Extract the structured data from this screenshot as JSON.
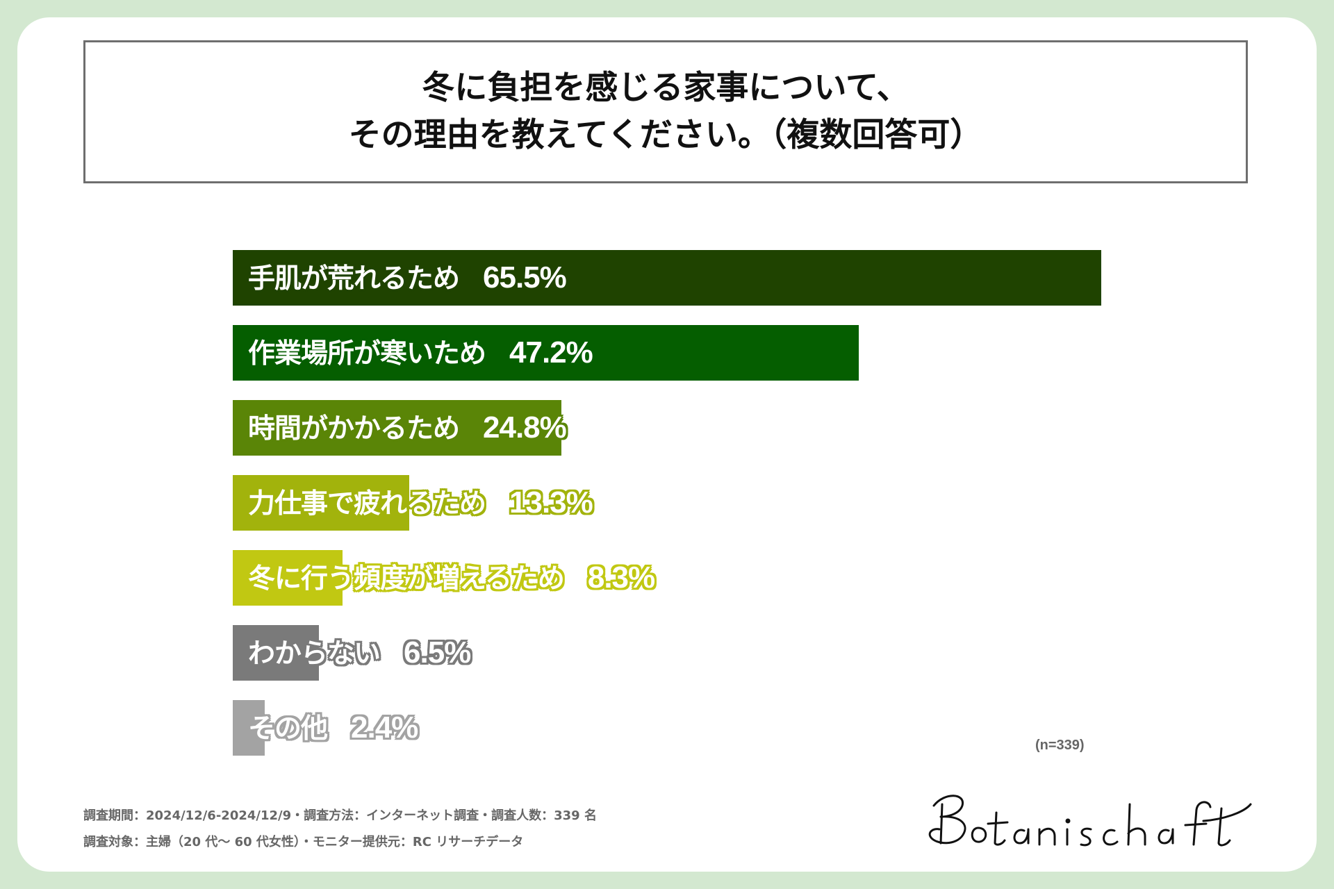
{
  "title": {
    "line1": "冬に負担を感じる家事について、",
    "line2": "その理由を教えてください。（複数回答可）"
  },
  "chart_data": {
    "type": "bar",
    "orientation": "horizontal",
    "title": "冬に負担を感じる家事について、その理由を教えてください。（複数回答可）",
    "categories": [
      "手肌が荒れるため",
      "作業場所が寒いため",
      "時間がかかるため",
      "力仕事で疲れるため",
      "冬に行う頻度が増えるため",
      "わからない",
      "その他"
    ],
    "values": [
      65.5,
      47.2,
      24.8,
      13.3,
      8.3,
      6.5,
      2.4
    ],
    "value_labels": [
      "65.5%",
      "47.2%",
      "24.8%",
      "13.3%",
      "8.3%",
      "6.5%",
      "2.4%"
    ],
    "colors": [
      "#1f4300",
      "#055e00",
      "#5a8507",
      "#a2b30c",
      "#c1c812",
      "#7a7a7a",
      "#a3a3a3"
    ],
    "xlim": [
      0,
      65.5
    ],
    "grid": false
  },
  "sample_note": "(n=339)",
  "footnotes": {
    "line1": "調査期間：2024/12/6-2024/12/9・調査方法：インターネット調査・調査人数：339 名",
    "line2": "調査対象：主婦（20 代～ 60 代女性）・モニター提供元：RC リサーチデータ"
  },
  "logo": {
    "text": "Botanischaft",
    "icon": "botanischaft-handwritten-logo"
  },
  "colors": {
    "background": "#d3e8d0",
    "card": "#ffffff",
    "title_border": "#6e6e6e"
  }
}
